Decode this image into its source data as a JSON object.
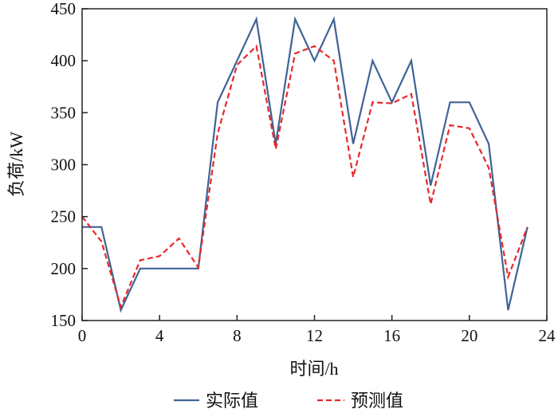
{
  "chart_data": {
    "type": "line",
    "xlabel": "时间/h",
    "ylabel": "负荷/kW",
    "xlim": [
      0,
      24
    ],
    "ylim": [
      150,
      450
    ],
    "xticks": [
      0,
      4,
      8,
      12,
      16,
      20,
      24
    ],
    "yticks": [
      150,
      200,
      250,
      300,
      350,
      400,
      450
    ],
    "grid": false,
    "legend_placement": "bottom",
    "x": [
      0,
      1,
      2,
      3,
      4,
      5,
      6,
      7,
      8,
      9,
      10,
      11,
      12,
      13,
      14,
      15,
      16,
      17,
      18,
      19,
      20,
      21,
      22,
      23
    ],
    "series": [
      {
        "name": "实际值",
        "color": "#3f6395",
        "style": "solid",
        "values": [
          240,
          240,
          160,
          200,
          200,
          200,
          200,
          360,
          400,
          440,
          320,
          440,
          400,
          440,
          320,
          400,
          360,
          400,
          280,
          360,
          360,
          320,
          160,
          240
        ]
      },
      {
        "name": "预测值",
        "color": "#e8282a",
        "style": "dashed",
        "values": [
          250,
          226,
          163,
          208,
          212,
          229,
          201,
          330,
          396,
          414,
          315,
          407,
          414,
          400,
          288,
          360,
          359,
          368,
          262,
          338,
          335,
          297,
          192,
          240
        ]
      }
    ]
  }
}
